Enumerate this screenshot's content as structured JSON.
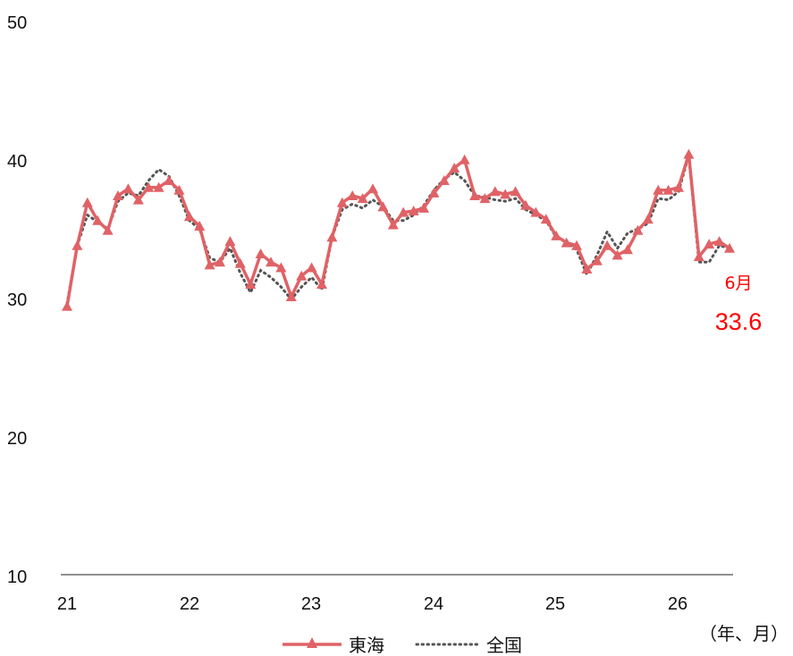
{
  "chart_data": {
    "type": "line",
    "title": "",
    "xlabel": "",
    "ylabel": "",
    "unit_label": "（年、月）",
    "ylim": [
      10,
      50
    ],
    "y_ticks": [
      "50",
      "40",
      "30",
      "20",
      "10"
    ],
    "x_ticks": [
      "21",
      "22",
      "23",
      "24",
      "25",
      "26"
    ],
    "grid": false,
    "legend_position": "bottom",
    "annotation": {
      "month": "6月",
      "value": "33.6"
    },
    "colors": {
      "tokai": "#e06266",
      "national": "#555555",
      "annotation": "#ff0000",
      "axis": "#222222"
    },
    "series": [
      {
        "name": "東海",
        "style": "solid-triangle",
        "values": [
          29.4,
          33.8,
          36.9,
          35.6,
          34.9,
          37.4,
          37.9,
          37.1,
          38.0,
          38.0,
          38.5,
          37.8,
          35.9,
          35.2,
          32.4,
          32.6,
          34.1,
          32.5,
          31.0,
          33.2,
          32.6,
          32.2,
          30.1,
          31.6,
          32.2,
          31.0,
          34.4,
          36.9,
          37.4,
          37.2,
          37.9,
          36.6,
          35.3,
          36.2,
          36.3,
          36.5,
          37.6,
          38.5,
          39.4,
          40.0,
          37.4,
          37.2,
          37.7,
          37.5,
          37.7,
          36.7,
          36.2,
          35.7,
          34.5,
          34.0,
          33.8,
          32.1,
          32.7,
          33.8,
          33.1,
          33.5,
          34.9,
          35.7,
          37.8,
          37.8,
          38.0,
          40.4,
          33.0,
          33.9,
          34.1,
          33.6
        ]
      },
      {
        "name": "全国",
        "style": "dotted",
        "values": [
          29.6,
          33.8,
          36.0,
          35.5,
          35.0,
          37.0,
          37.6,
          37.4,
          38.5,
          39.3,
          38.8,
          37.4,
          35.6,
          35.0,
          32.9,
          32.6,
          33.6,
          31.8,
          30.4,
          32.0,
          31.5,
          30.8,
          29.9,
          30.8,
          31.5,
          30.6,
          34.4,
          36.4,
          36.8,
          36.5,
          37.1,
          36.6,
          35.6,
          35.6,
          36.0,
          36.7,
          37.8,
          38.6,
          39.1,
          38.5,
          37.4,
          37.3,
          37.1,
          37.0,
          37.2,
          36.4,
          36.0,
          35.6,
          34.4,
          34.1,
          33.5,
          31.7,
          33.1,
          34.8,
          33.6,
          34.7,
          35.0,
          35.4,
          37.2,
          37.1,
          37.7,
          40.3,
          32.6,
          32.6,
          33.8,
          33.6
        ]
      }
    ]
  }
}
